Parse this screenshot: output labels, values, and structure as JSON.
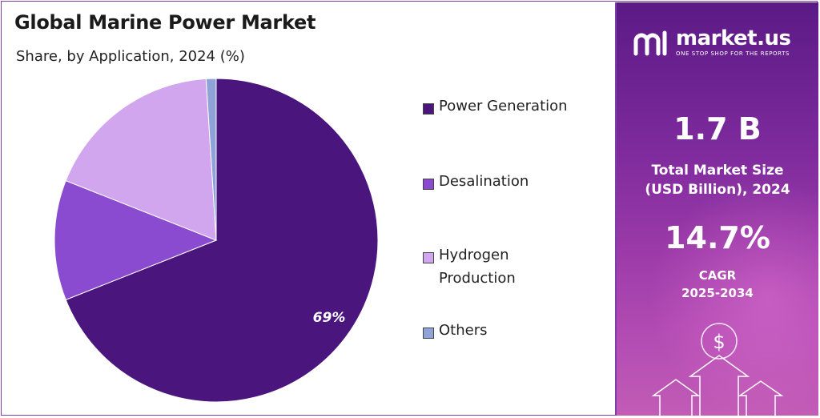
{
  "title": "Global Marine Power Market",
  "subtitle": "Share, by Application, 2024 (%)",
  "chart_data": {
    "type": "pie",
    "title": "Global Marine Power Market",
    "subtitle": "Share, by Application, 2024 (%)",
    "categories": [
      "Power Generation",
      "Desalination",
      "Hydrogen Production",
      "Others"
    ],
    "values": [
      69,
      12,
      18,
      1
    ],
    "colors": [
      "#4a167e",
      "#8a4bd0",
      "#d2a6ee",
      "#8fa3d8"
    ],
    "data_labels": [
      "69%",
      "",
      "",
      ""
    ],
    "legend_position": "right"
  },
  "legend": [
    {
      "label_lines": [
        "Power Generation"
      ],
      "color": "#4a167e"
    },
    {
      "label_lines": [
        "Desalination"
      ],
      "color": "#8a4bd0"
    },
    {
      "label_lines": [
        "Hydrogen",
        "Production"
      ],
      "color": "#d2a6ee"
    },
    {
      "label_lines": [
        "Others"
      ],
      "color": "#8fa3d8"
    }
  ],
  "sidebar": {
    "brand_name": "market.us",
    "brand_tagline": "ONE STOP SHOP FOR THE REPORTS",
    "market_size_value": "1.7 B",
    "market_size_label_1": "Total Market Size",
    "market_size_label_2": "(USD Billion), 2024",
    "cagr_value": "14.7%",
    "cagr_label_1": "CAGR",
    "cagr_label_2": "2025-2034",
    "currency_symbol": "$"
  }
}
